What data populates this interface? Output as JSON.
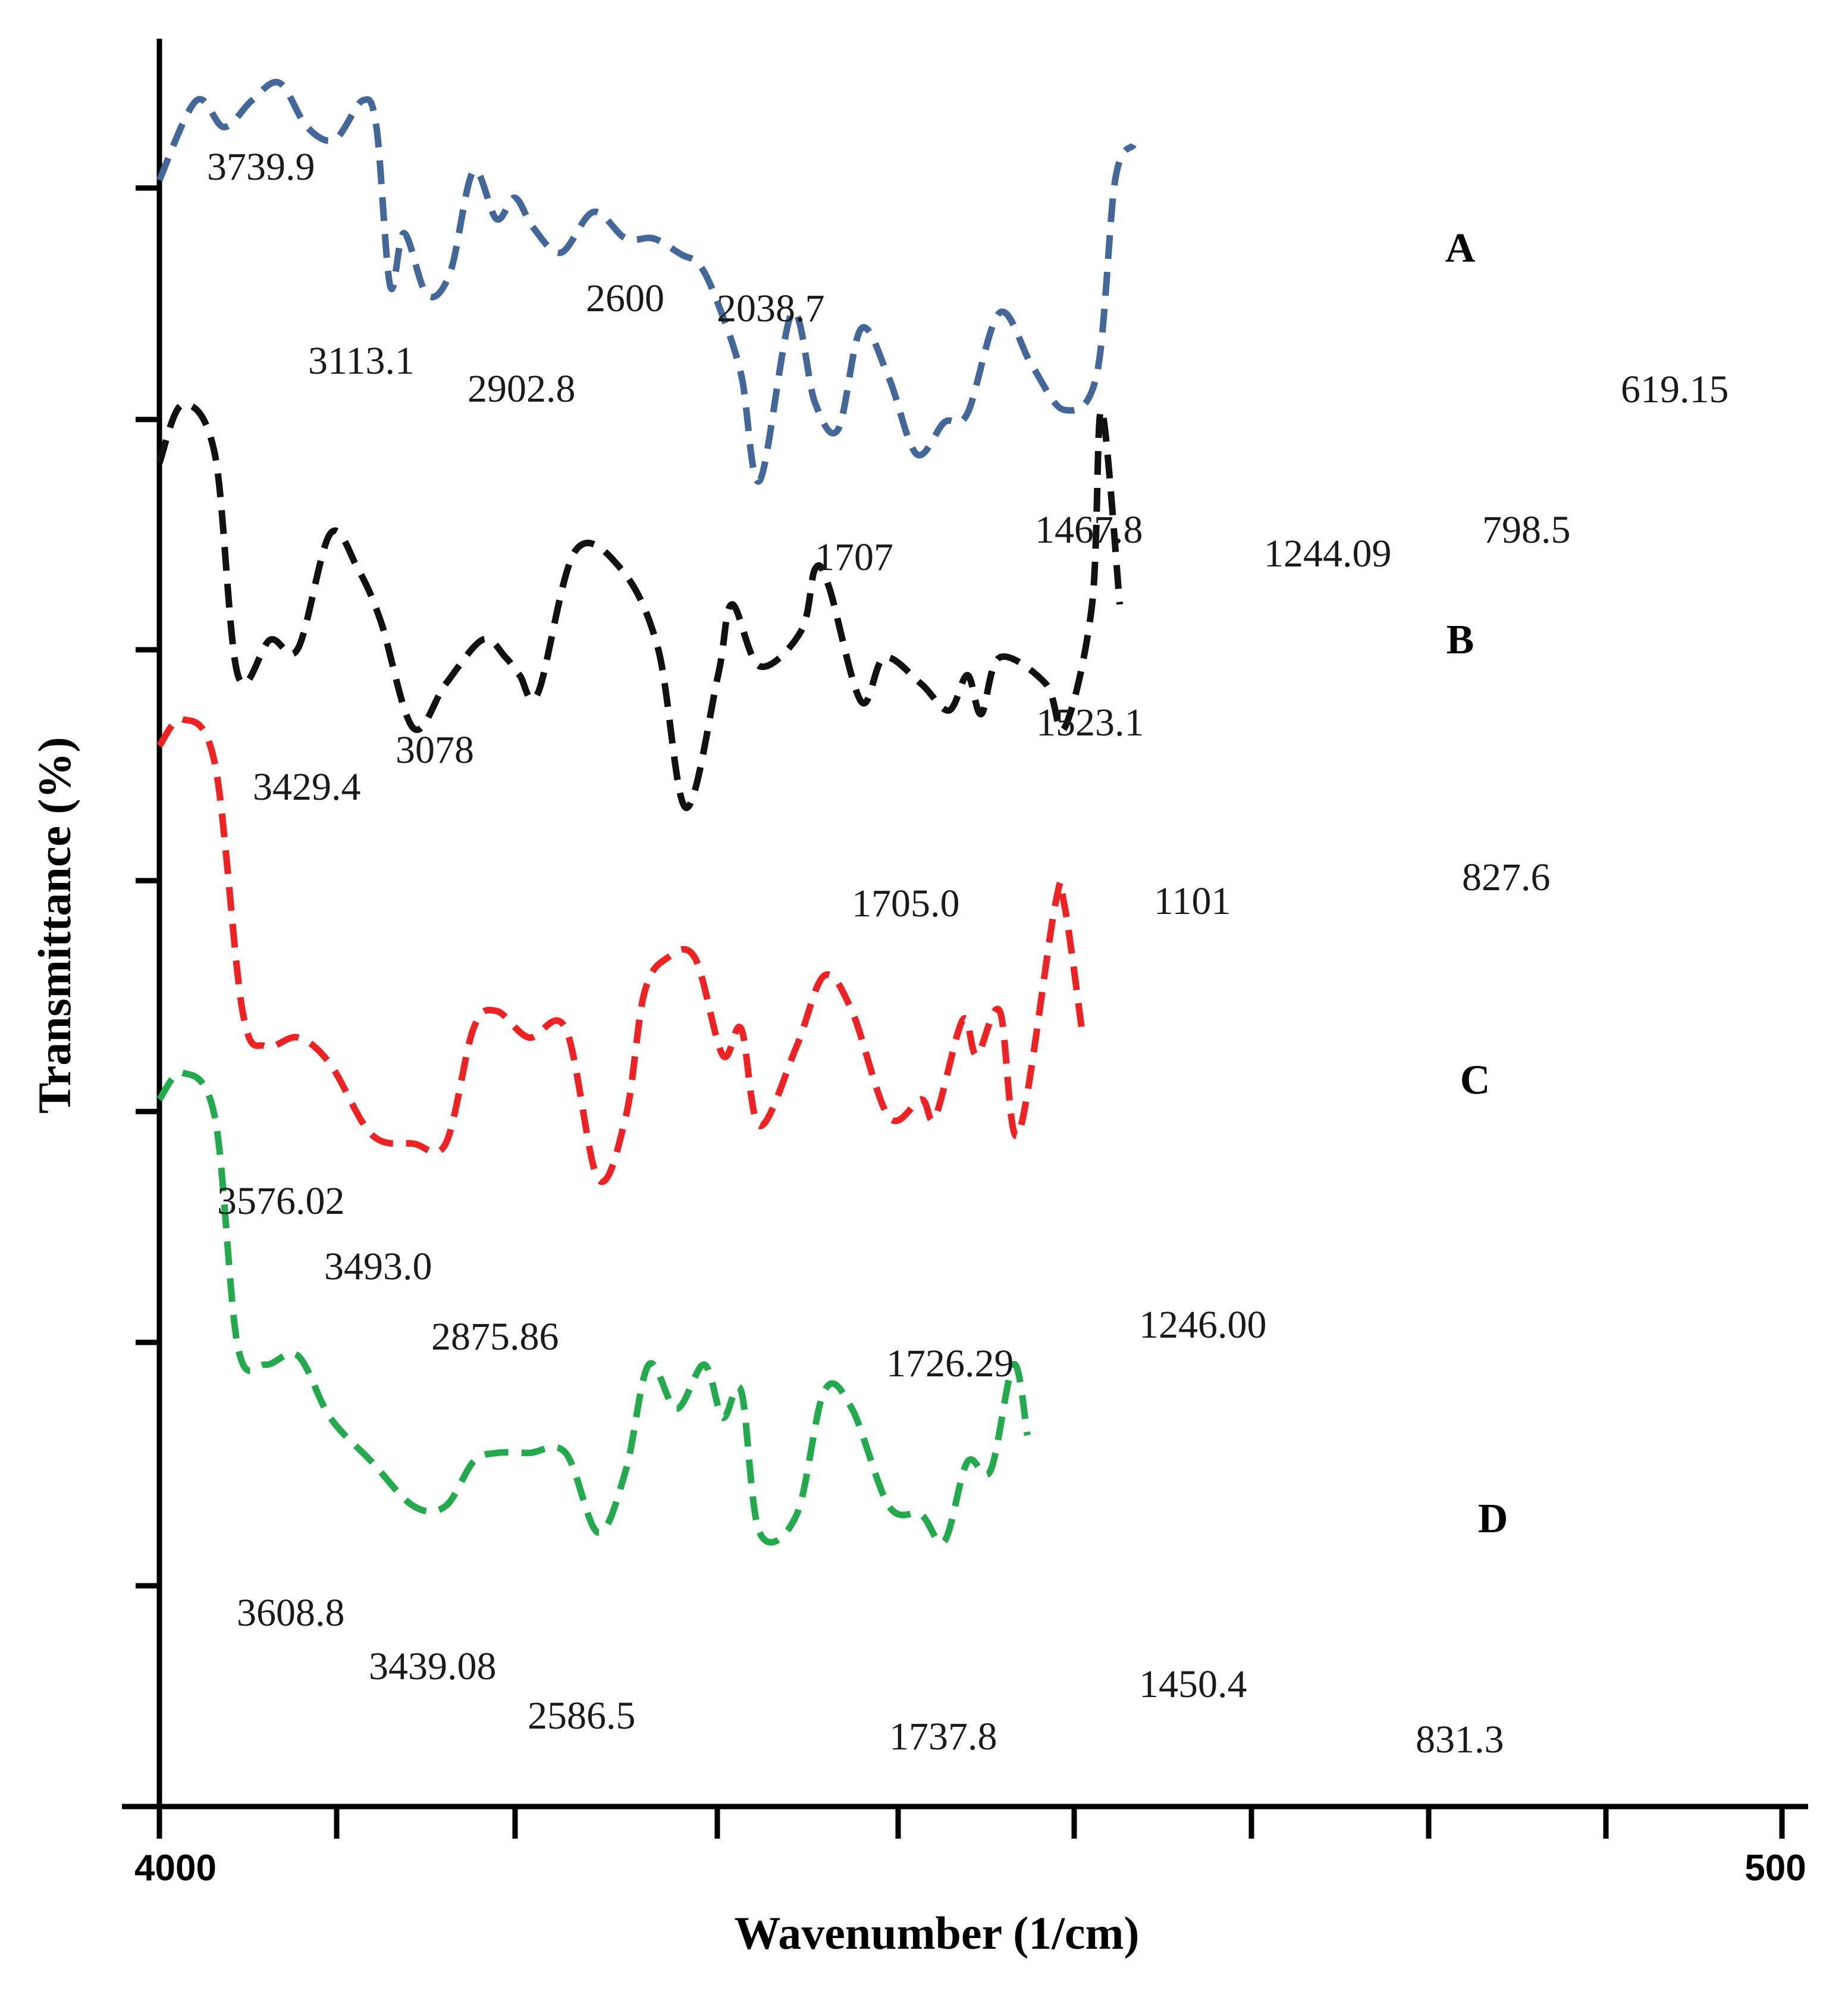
{
  "chart_data": {
    "type": "line",
    "title": "",
    "xlabel": "Wavenumber (1/cm)",
    "ylabel": "Transmittance (%)",
    "xlim": [
      4000,
      500
    ],
    "x_tick_labels": [
      {
        "value": 4000,
        "label": "4000"
      },
      {
        "value": 500,
        "label": "500"
      }
    ],
    "series": [
      {
        "name": "A",
        "color": "#44679a",
        "points": [
          [
            4000,
            92
          ],
          [
            3920,
            96.5
          ],
          [
            3860,
            95
          ],
          [
            3800,
            96.5
          ],
          [
            3740,
            97.5
          ],
          [
            3680,
            95
          ],
          [
            3620,
            94.3
          ],
          [
            3560,
            96.5
          ],
          [
            3530,
            95
          ],
          [
            3500,
            86
          ],
          [
            3470,
            89
          ],
          [
            3420,
            85.5
          ],
          [
            3370,
            86.8
          ],
          [
            3320,
            92.5
          ],
          [
            3270,
            89.8
          ],
          [
            3230,
            91
          ],
          [
            3190,
            89.3
          ],
          [
            3130,
            87.9
          ],
          [
            3060,
            90.2
          ],
          [
            2990,
            88.7
          ],
          [
            2930,
            88.7
          ],
          [
            2870,
            87.8
          ],
          [
            2830,
            87.2
          ],
          [
            2790,
            85
          ],
          [
            2740,
            81
          ],
          [
            2700,
            75
          ],
          [
            2630,
            84.5
          ],
          [
            2580,
            79.4
          ],
          [
            2530,
            77.9
          ],
          [
            2480,
            83.6
          ],
          [
            2420,
            80.8
          ],
          [
            2360,
            76.5
          ],
          [
            2300,
            78.3
          ],
          [
            2250,
            78.8
          ],
          [
            2180,
            84.5
          ],
          [
            2110,
            81.5
          ],
          [
            2040,
            79
          ],
          [
            1970,
            81
          ],
          [
            1930,
            92
          ],
          [
            1890,
            94
          ]
        ],
        "peak_labels": [
          "3739.9",
          "3113.1",
          "2902.8",
          "2600",
          "2038.7",
          "1707",
          "1467.8",
          "1244.09",
          "798.5",
          "619.15"
        ],
        "series_label": "A"
      },
      {
        "name": "B",
        "color": "#111111",
        "points": [
          [
            4000,
            76
          ],
          [
            3950,
            79.3
          ],
          [
            3880,
            76.5
          ],
          [
            3830,
            64
          ],
          [
            3760,
            66
          ],
          [
            3700,
            65.5
          ],
          [
            3630,
            72
          ],
          [
            3570,
            70
          ],
          [
            3520,
            67
          ],
          [
            3450,
            61
          ],
          [
            3380,
            63.5
          ],
          [
            3300,
            66
          ],
          [
            3250,
            65
          ],
          [
            3220,
            64
          ],
          [
            3180,
            63
          ],
          [
            3100,
            71
          ],
          [
            3000,
            70
          ],
          [
            2920,
            65.5
          ],
          [
            2860,
            56.5
          ],
          [
            2790,
            64
          ],
          [
            2760,
            68
          ],
          [
            2700,
            64.5
          ],
          [
            2610,
            66.5
          ],
          [
            2580,
            70
          ],
          [
            2550,
            69
          ],
          [
            2480,
            62.5
          ],
          [
            2430,
            65
          ],
          [
            2350,
            63.5
          ],
          [
            2290,
            62
          ],
          [
            2250,
            64
          ],
          [
            2220,
            61.8
          ],
          [
            2180,
            65
          ],
          [
            2080,
            63.5
          ],
          [
            2040,
            61
          ],
          [
            1980,
            68
          ],
          [
            1960,
            79
          ],
          [
            1920,
            68
          ]
        ],
        "peak_labels": [
          "3429.4",
          "3078",
          "1705.0",
          "1523.1",
          "1101",
          "827.6"
        ],
        "series_label": "B"
      },
      {
        "name": "C",
        "color": "#ee2222",
        "points": [
          [
            4000,
            60
          ],
          [
            3950,
            61.5
          ],
          [
            3880,
            59
          ],
          [
            3820,
            45
          ],
          [
            3770,
            43
          ],
          [
            3700,
            43.5
          ],
          [
            3630,
            42
          ],
          [
            3540,
            38
          ],
          [
            3450,
            37.5
          ],
          [
            3380,
            37.5
          ],
          [
            3320,
            44
          ],
          [
            3270,
            45
          ],
          [
            3200,
            43.5
          ],
          [
            3120,
            44
          ],
          [
            3050,
            35.5
          ],
          [
            2990,
            39
          ],
          [
            2950,
            46
          ],
          [
            2900,
            48
          ],
          [
            2840,
            48
          ],
          [
            2780,
            42.5
          ],
          [
            2740,
            44
          ],
          [
            2700,
            38.5
          ],
          [
            2620,
            43
          ],
          [
            2560,
            47
          ],
          [
            2500,
            45
          ],
          [
            2420,
            39
          ],
          [
            2350,
            40
          ],
          [
            2320,
            39
          ],
          [
            2260,
            44.5
          ],
          [
            2230,
            42.5
          ],
          [
            2180,
            45
          ],
          [
            2140,
            38
          ],
          [
            2060,
            51
          ],
          [
            2040,
            51
          ],
          [
            2000,
            43.5
          ]
        ],
        "peak_labels": [
          "3576.02",
          "3493.0",
          "2875.86",
          "1726.29",
          "1246.00"
        ],
        "series_label": "C"
      },
      {
        "name": "D",
        "color": "#22aa4c",
        "points": [
          [
            4000,
            40
          ],
          [
            3950,
            41.5
          ],
          [
            3880,
            39
          ],
          [
            3830,
            26
          ],
          [
            3770,
            25
          ],
          [
            3700,
            25.5
          ],
          [
            3630,
            22
          ],
          [
            3540,
            19.5
          ],
          [
            3450,
            17
          ],
          [
            3380,
            17
          ],
          [
            3320,
            19.5
          ],
          [
            3270,
            20
          ],
          [
            3200,
            20
          ],
          [
            3120,
            20
          ],
          [
            3050,
            15.5
          ],
          [
            2990,
            19
          ],
          [
            2940,
            25
          ],
          [
            2880,
            22.5
          ],
          [
            2820,
            25
          ],
          [
            2780,
            22
          ],
          [
            2740,
            23.5
          ],
          [
            2700,
            15.5
          ],
          [
            2620,
            16.5
          ],
          [
            2560,
            23.5
          ],
          [
            2500,
            22.5
          ],
          [
            2420,
            17
          ],
          [
            2350,
            16.5
          ],
          [
            2300,
            15
          ],
          [
            2250,
            19.5
          ],
          [
            2200,
            19
          ],
          [
            2150,
            25
          ],
          [
            2120,
            21
          ]
        ],
        "peak_labels": [
          "3608.8",
          "3439.08",
          "2586.5",
          "1737.8",
          "1450.4",
          "831.3"
        ],
        "series_label": "D"
      }
    ],
    "grid": false,
    "legend": "none"
  }
}
